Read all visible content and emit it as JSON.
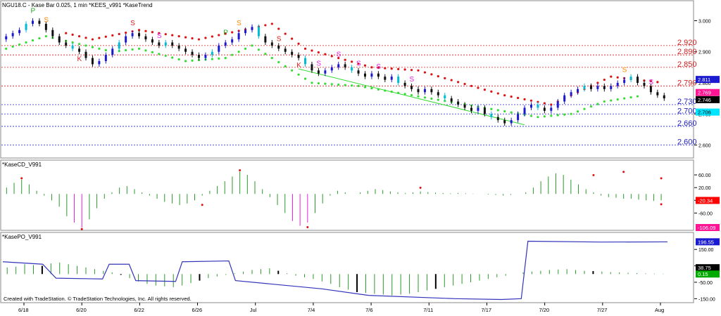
{
  "header": {
    "symbol_line": "NGU18.C - Kase Bar 0.025, 1 min  *KEES_v991  *KaseTrend"
  },
  "credits": "Created with TradeStation. © TradeStation Technologies, Inc. All rights reserved.",
  "colors": {
    "bull": "#1a1ad0",
    "bear": "#111111",
    "cyan": "#00bcd4",
    "trend_up": "#33dd33",
    "trend_dn": "#dd1111",
    "hist_green": "#2a9a2a",
    "hist_magenta": "#e020e0",
    "po_line": "#3333bb",
    "level_red": "#d02020",
    "level_blue": "#2020c0"
  },
  "chart_data": [
    {
      "type": "candlestick",
      "panel": "price",
      "x_labels": [
        "6/18",
        "6/20",
        "6/22",
        "6/26",
        "Jul",
        "7/4",
        "7/6",
        "7/11",
        "7/17",
        "7/20",
        "7/27",
        "Aug"
      ],
      "y_ticks": [
        "3.000",
        "2.900",
        "2.800",
        "2.700",
        "2.600"
      ],
      "ylim": [
        2.565,
        3.035
      ],
      "closes": [
        2.95,
        2.96,
        2.97,
        2.99,
        3.0,
        2.99,
        2.97,
        2.95,
        2.93,
        2.92,
        2.91,
        2.9,
        2.88,
        2.86,
        2.87,
        2.89,
        2.91,
        2.93,
        2.95,
        2.96,
        2.95,
        2.94,
        2.93,
        2.92,
        2.93,
        2.92,
        2.91,
        2.9,
        2.89,
        2.88,
        2.89,
        2.9,
        2.92,
        2.93,
        2.94,
        2.96,
        2.97,
        2.98,
        2.95,
        2.93,
        2.92,
        2.91,
        2.9,
        2.89,
        2.88,
        2.86,
        2.84,
        2.83,
        2.84,
        2.85,
        2.86,
        2.85,
        2.84,
        2.83,
        2.82,
        2.83,
        2.82,
        2.81,
        2.82,
        2.8,
        2.79,
        2.78,
        2.77,
        2.78,
        2.77,
        2.76,
        2.75,
        2.74,
        2.73,
        2.72,
        2.71,
        2.72,
        2.7,
        2.69,
        2.68,
        2.67,
        2.68,
        2.7,
        2.72,
        2.73,
        2.72,
        2.71,
        2.72,
        2.74,
        2.76,
        2.77,
        2.78,
        2.79,
        2.78,
        2.79,
        2.78,
        2.79,
        2.8,
        2.81,
        2.82,
        2.8,
        2.79,
        2.77,
        2.76,
        2.75
      ],
      "trend_dots_up": [
        [
          0,
          2.91
        ],
        [
          6,
          2.95
        ],
        [
          16,
          2.9
        ],
        [
          20,
          2.91
        ],
        [
          27,
          2.87
        ],
        [
          33,
          2.88
        ],
        [
          37,
          2.92
        ],
        [
          46,
          2.8
        ],
        [
          53,
          2.79
        ],
        [
          80,
          2.69
        ],
        [
          85,
          2.7
        ],
        [
          90,
          2.74
        ],
        [
          96,
          2.76
        ]
      ],
      "trend_dots_dn": [
        [
          9,
          2.96
        ],
        [
          13,
          2.94
        ],
        [
          20,
          2.97
        ],
        [
          29,
          2.94
        ],
        [
          40,
          2.99
        ],
        [
          45,
          2.91
        ],
        [
          55,
          2.85
        ],
        [
          62,
          2.84
        ],
        [
          70,
          2.79
        ],
        [
          75,
          2.76
        ],
        [
          82,
          2.73
        ],
        [
          91,
          2.82
        ],
        [
          99,
          2.8
        ]
      ],
      "trendline": [
        [
          44,
          2.845
        ],
        [
          78,
          2.665
        ]
      ],
      "levels": [
        {
          "value": 2.92,
          "label": "2.920",
          "color": "red"
        },
        {
          "value": 2.89,
          "label": "2.890",
          "color": "red"
        },
        {
          "value": 2.85,
          "label": "2.850",
          "color": "red"
        },
        {
          "value": 2.79,
          "label": "2.790",
          "color": "red"
        },
        {
          "value": 2.73,
          "label": "2.730",
          "color": "blue"
        },
        {
          "value": 2.7,
          "label": "2.700",
          "color": "blue"
        },
        {
          "value": 2.66,
          "label": "2.660",
          "color": "blue"
        },
        {
          "value": 2.6,
          "label": "2.600",
          "color": "blue"
        }
      ],
      "signals": [
        {
          "i": 4,
          "text": "P",
          "color": "#22aa22",
          "pos": "above"
        },
        {
          "i": 6,
          "text": "S",
          "color": "#ff8800",
          "pos": "above"
        },
        {
          "i": 11,
          "text": "K",
          "color": "#dd2222",
          "pos": "below"
        },
        {
          "i": 19,
          "text": "S",
          "color": "#dd2222",
          "pos": "above"
        },
        {
          "i": 23,
          "text": "S",
          "color": "#e020e0",
          "pos": "above"
        },
        {
          "i": 33,
          "text": "P",
          "color": "#22aa22",
          "pos": "above"
        },
        {
          "i": 35,
          "text": "S",
          "color": "#ff8800",
          "pos": "above"
        },
        {
          "i": 41,
          "text": "S",
          "color": "#dd2222",
          "pos": "above"
        },
        {
          "i": 44,
          "text": "K",
          "color": "#dd2222",
          "pos": "below"
        },
        {
          "i": 47,
          "text": "S",
          "color": "#e020e0",
          "pos": "above"
        },
        {
          "i": 50,
          "text": "S",
          "color": "#e020e0",
          "pos": "above"
        },
        {
          "i": 53,
          "text": "S",
          "color": "#e020e0",
          "pos": "above"
        },
        {
          "i": 56,
          "text": "S",
          "color": "#e020e0",
          "pos": "above"
        },
        {
          "i": 61,
          "text": "S",
          "color": "#e020e0",
          "pos": "above"
        },
        {
          "i": 93,
          "text": "S",
          "color": "#ff8800",
          "pos": "above"
        },
        {
          "i": 97,
          "text": "S",
          "color": "#e020e0",
          "pos": "above"
        }
      ],
      "price_boxes": [
        {
          "label": "2.811",
          "bg": "#1a1ad0",
          "fg": "#ffffff",
          "value": 2.811
        },
        {
          "label": "2.769",
          "bg": "#ff1493",
          "fg": "#ffffff",
          "value": 2.769
        },
        {
          "label": "2.746",
          "bg": "#000000",
          "fg": "#ffffff",
          "value": 2.746
        },
        {
          "label": "2.706",
          "bg": "#00e5ff",
          "fg": "#000000",
          "value": 2.706
        }
      ]
    },
    {
      "type": "bar",
      "panel": "kasecd",
      "title": "*KaseCD_V991",
      "y_ticks": [
        "60.00",
        "20.00",
        "-20.00",
        "-60.00"
      ],
      "ylim": [
        -110,
        80
      ],
      "values": [
        20,
        35,
        45,
        30,
        10,
        -5,
        -20,
        -40,
        -70,
        -90,
        -106,
        -80,
        -45,
        -15,
        5,
        20,
        25,
        15,
        5,
        -5,
        -15,
        -25,
        -30,
        -35,
        -30,
        -20,
        -5,
        10,
        25,
        40,
        55,
        70,
        60,
        40,
        15,
        -10,
        -35,
        -60,
        -85,
        -100,
        -90,
        -60,
        -30,
        -5,
        10,
        5,
        0,
        5,
        10,
        15,
        12,
        8,
        5,
        3,
        5,
        8,
        6,
        4,
        3,
        2,
        3,
        2,
        1,
        0,
        -2,
        -3,
        -5,
        -3,
        0,
        5,
        20,
        40,
        55,
        65,
        60,
        45,
        30,
        15,
        5,
        -5,
        -10,
        -12,
        -15,
        -15,
        -18,
        -20,
        -22,
        -20
      ],
      "markers": [
        [
          2,
          45
        ],
        [
          31,
          70
        ],
        [
          10,
          -106
        ],
        [
          26,
          -30
        ],
        [
          40,
          -100
        ],
        [
          55,
          15
        ],
        [
          78,
          55
        ],
        [
          82,
          65
        ],
        [
          87,
          45
        ],
        [
          104,
          -28
        ]
      ],
      "value_boxes": [
        {
          "label": "-20.34",
          "bg": "#ff0000",
          "fg": "#ffffff",
          "value": -20.34
        },
        {
          "label": "-106.09",
          "bg": "#ff1493",
          "fg": "#ffffff",
          "value": -106.09
        }
      ]
    },
    {
      "type": "bar",
      "panel": "kasepo",
      "title": "*KasePO_V991",
      "y_ticks": [
        "150.00",
        "50.00",
        "-50.00",
        "-150.00"
      ],
      "ylim": [
        -170,
        215
      ],
      "histogram": [
        40,
        45,
        60,
        55,
        50,
        65,
        70,
        60,
        50,
        40,
        30,
        20,
        10,
        -5,
        -25,
        -45,
        -60,
        -70,
        -75,
        -80,
        -70,
        -55,
        -40,
        -25,
        -15,
        -5,
        5,
        15,
        25,
        30,
        35,
        20,
        5,
        -10,
        -20,
        -30,
        -45,
        -60,
        -80,
        -95,
        -110,
        -115,
        -120,
        -125,
        -130,
        -125,
        -120,
        -110,
        -100,
        -90,
        -80,
        -70,
        -60,
        -50,
        -40,
        -30,
        -20,
        -10,
        0,
        10,
        15,
        20,
        25,
        28,
        30,
        25,
        20,
        18,
        15,
        12,
        10,
        8,
        6,
        4,
        3,
        2
      ],
      "line": [
        [
          0,
          75
        ],
        [
          6,
          60
        ],
        [
          8,
          -25
        ],
        [
          15,
          -30
        ],
        [
          16,
          60
        ],
        [
          19,
          60
        ],
        [
          20,
          -40
        ],
        [
          26,
          -45
        ],
        [
          27,
          75
        ],
        [
          34,
          80
        ],
        [
          35,
          -40
        ],
        [
          48,
          -90
        ],
        [
          55,
          -130
        ],
        [
          68,
          -150
        ],
        [
          75,
          -155
        ],
        [
          78,
          -150
        ],
        [
          79,
          200
        ],
        [
          90,
          195
        ],
        [
          100,
          196
        ]
      ],
      "value_boxes": [
        {
          "label": "196.55",
          "bg": "#1a1ad0",
          "fg": "#ffffff",
          "value": 196.55
        },
        {
          "label": "38.75",
          "bg": "#000000",
          "fg": "#ffffff",
          "value": 38.75
        },
        {
          "label": "0.15",
          "bg": "#00aa00",
          "fg": "#ffffff",
          "value": 0.15
        }
      ]
    }
  ]
}
